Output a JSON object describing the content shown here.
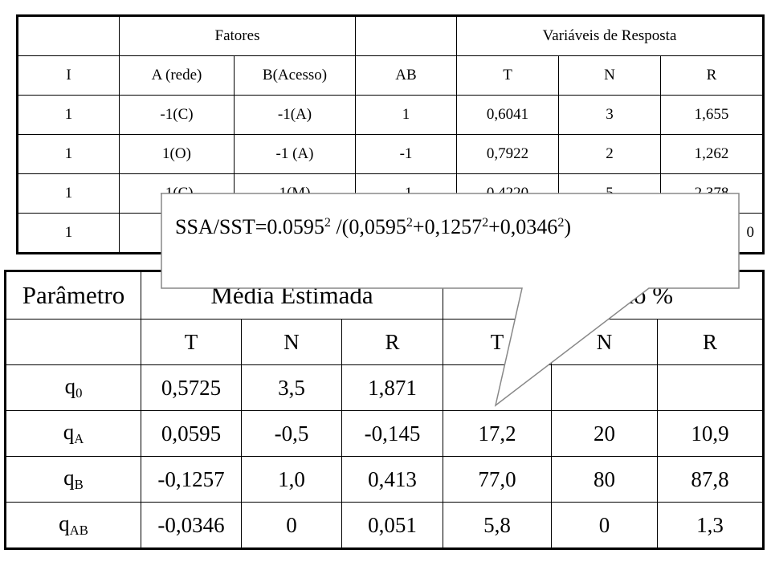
{
  "top_table": {
    "group_headers": {
      "col0": "",
      "factors": "Fatores",
      "col4": "",
      "responses": "Variáveis de Resposta"
    },
    "columns": [
      "I",
      "A (rede)",
      "B(Acesso)",
      "AB",
      "T",
      "N",
      "R"
    ],
    "rows": [
      [
        "1",
        "-1(C)",
        "-1(A)",
        "1",
        "0,6041",
        "3",
        "1,655"
      ],
      [
        "1",
        "1(O)",
        "-1 (A)",
        "-1",
        "0,7922",
        "2",
        "1,262"
      ],
      [
        "1",
        "-1(C)",
        "1(M)",
        "-1",
        "0,4220",
        "5",
        "2,378"
      ],
      [
        "1",
        "1",
        "",
        "",
        "",
        "",
        "0"
      ]
    ]
  },
  "bottom_table": {
    "header": {
      "param": "Parâmetro",
      "mean": "Média Estimada",
      "variation": "% Variação %"
    },
    "subheader": [
      "",
      "T",
      "N",
      "R",
      "T",
      "N",
      "R"
    ],
    "rows": [
      {
        "param": "q",
        "sub": "0",
        "cells": [
          "0,5725",
          "3,5",
          "1,871",
          "",
          "",
          ""
        ]
      },
      {
        "param": "q",
        "sub": "A",
        "cells": [
          "0,0595",
          "-0,5",
          "-0,145",
          "17,2",
          "20",
          "10,9"
        ]
      },
      {
        "param": "q",
        "sub": "B",
        "cells": [
          "-0,1257",
          "1,0",
          "0,413",
          "77,0",
          "80",
          "87,8"
        ]
      },
      {
        "param": "q",
        "sub": "AB",
        "cells": [
          "-0,0346",
          "0",
          "0,051",
          "5,8",
          "0",
          "1,3"
        ]
      }
    ]
  },
  "callout": {
    "prefix": "SSA/SST=0.0595",
    "exp1": "2",
    "mid1": " /(0,0595",
    "exp2": "2",
    "mid2": "+0,1257",
    "exp3": "2",
    "mid3": "+0,0346",
    "exp4": "2",
    "suffix": ")"
  }
}
